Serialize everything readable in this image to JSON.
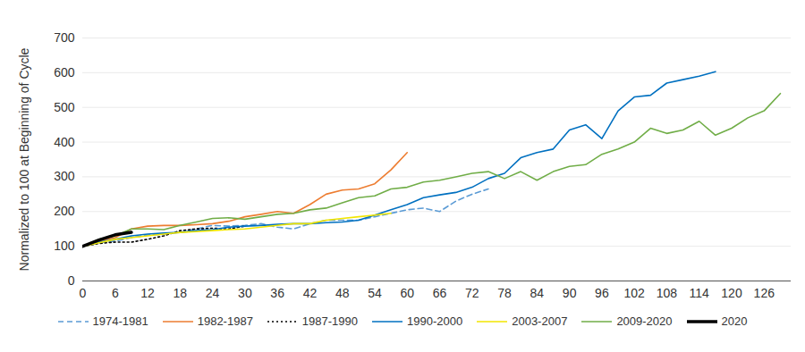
{
  "chart_data": {
    "type": "line",
    "y_label": "Normalized to 100 at Beginning of Cycle",
    "x": [
      0,
      3,
      6,
      9,
      12,
      15,
      18,
      21,
      24,
      27,
      30,
      33,
      36,
      39,
      42,
      45,
      48,
      51,
      54,
      57,
      60,
      63,
      66,
      69,
      72,
      75,
      78,
      81,
      84,
      87,
      90,
      93,
      96,
      99,
      102,
      105,
      108,
      111,
      114,
      117,
      120,
      123,
      126,
      129
    ],
    "xlim": [
      0,
      131
    ],
    "xticks": [
      0,
      6,
      12,
      18,
      24,
      30,
      36,
      42,
      48,
      54,
      60,
      66,
      72,
      78,
      84,
      90,
      96,
      102,
      108,
      114,
      120,
      126
    ],
    "ylim": [
      0,
      700
    ],
    "yticks": [
      0,
      100,
      200,
      300,
      400,
      500,
      600,
      700
    ],
    "grid": true,
    "legend": "bottom",
    "series": [
      {
        "name": "1974-1981",
        "color": "#5b9bd5",
        "line_style": "dashed",
        "values": [
          100,
          110,
          115,
          125,
          132,
          135,
          140,
          150,
          160,
          158,
          160,
          165,
          155,
          150,
          165,
          175,
          175,
          175,
          185,
          195,
          205,
          210,
          200,
          230,
          250,
          265,
          null,
          null,
          null,
          null,
          null,
          null,
          null,
          null,
          null,
          null,
          null,
          null,
          null,
          null,
          null,
          null,
          null,
          null
        ]
      },
      {
        "name": "1982-1987",
        "color": "#ed7d31",
        "line_style": "solid",
        "values": [
          100,
          115,
          125,
          150,
          158,
          160,
          160,
          162,
          165,
          172,
          185,
          192,
          200,
          195,
          220,
          250,
          262,
          265,
          280,
          320,
          370,
          null,
          null,
          null,
          null,
          null,
          null,
          null,
          null,
          null,
          null,
          null,
          null,
          null,
          null,
          null,
          null,
          null,
          null,
          null,
          null,
          null,
          null,
          null
        ]
      },
      {
        "name": "1987-1990",
        "color": "#000000",
        "line_style": "dotted",
        "values": [
          100,
          108,
          112,
          112,
          120,
          130,
          145,
          150,
          152,
          150,
          158,
          null,
          null,
          null,
          null,
          null,
          null,
          null,
          null,
          null,
          null,
          null,
          null,
          null,
          null,
          null,
          null,
          null,
          null,
          null,
          null,
          null,
          null,
          null,
          null,
          null,
          null,
          null,
          null,
          null,
          null,
          null,
          null,
          null
        ]
      },
      {
        "name": "1990-2000",
        "color": "#0070c0",
        "line_style": "solid",
        "values": [
          100,
          112,
          120,
          130,
          135,
          138,
          140,
          145,
          148,
          155,
          158,
          160,
          163,
          165,
          165,
          168,
          170,
          175,
          190,
          205,
          220,
          240,
          248,
          255,
          270,
          295,
          310,
          355,
          370,
          380,
          435,
          450,
          410,
          490,
          530,
          535,
          570,
          580,
          590,
          603,
          null,
          null,
          null,
          null
        ]
      },
      {
        "name": "2003-2007",
        "color": "#f2e600",
        "line_style": "solid",
        "values": [
          100,
          110,
          120,
          125,
          130,
          135,
          140,
          142,
          145,
          148,
          150,
          155,
          160,
          165,
          165,
          175,
          180,
          185,
          190,
          195,
          null,
          null,
          null,
          null,
          null,
          null,
          null,
          null,
          null,
          null,
          null,
          null,
          null,
          null,
          null,
          null,
          null,
          null,
          null,
          null,
          null,
          null,
          null,
          null
        ]
      },
      {
        "name": "2009-2020",
        "color": "#70ad47",
        "line_style": "solid",
        "values": [
          100,
          120,
          130,
          150,
          150,
          148,
          160,
          170,
          180,
          182,
          178,
          185,
          192,
          195,
          205,
          210,
          225,
          240,
          245,
          265,
          270,
          285,
          290,
          300,
          310,
          315,
          295,
          315,
          290,
          315,
          330,
          335,
          365,
          380,
          400,
          440,
          425,
          435,
          460,
          420,
          440,
          470,
          490,
          540
        ]
      },
      {
        "name": "2020",
        "color": "#000000",
        "line_style": "solid",
        "values": [
          100,
          118,
          133,
          140,
          null,
          null,
          null,
          null,
          null,
          null,
          null,
          null,
          null,
          null,
          null,
          null,
          null,
          null,
          null,
          null,
          null,
          null,
          null,
          null,
          null,
          null,
          null,
          null,
          null,
          null,
          null,
          null,
          null,
          null,
          null,
          null,
          null,
          null,
          null,
          null,
          null,
          null,
          null,
          null
        ]
      }
    ]
  }
}
